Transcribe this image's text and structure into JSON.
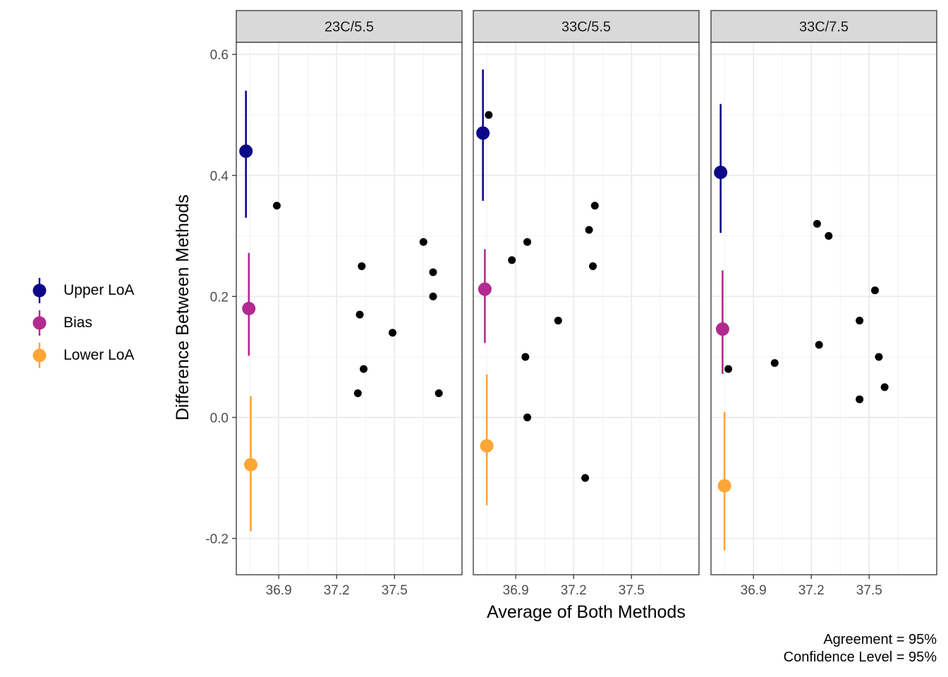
{
  "chart_data": {
    "type": "scatter",
    "xlabel": "Average of Both Methods",
    "ylabel": "Difference Between Methods",
    "xlim": [
      36.68,
      37.85
    ],
    "ylim": [
      -0.26,
      0.62
    ],
    "xticks": [
      36.9,
      37.2,
      37.5
    ],
    "xtick_labels": [
      "36.9",
      "37.2",
      "37.5"
    ],
    "yticks": [
      -0.2,
      0.0,
      0.2,
      0.4,
      0.6
    ],
    "ytick_labels": [
      "-0.2",
      "0.0",
      "0.2",
      "0.4",
      "0.6"
    ],
    "grid": true,
    "legend_position": "left",
    "legend": [
      {
        "label": "Upper LoA",
        "color": "#0d0887"
      },
      {
        "label": "Bias",
        "color": "#b12a90"
      },
      {
        "label": "Lower LoA",
        "color": "#fca636"
      }
    ],
    "point_color": "#000000",
    "panels": [
      {
        "title": "23C/5.5",
        "points": [
          {
            "x": 36.89,
            "y": 0.35
          },
          {
            "x": 37.33,
            "y": 0.25
          },
          {
            "x": 37.32,
            "y": 0.17
          },
          {
            "x": 37.34,
            "y": 0.08
          },
          {
            "x": 37.31,
            "y": 0.04
          },
          {
            "x": 37.49,
            "y": 0.14
          },
          {
            "x": 37.65,
            "y": 0.29
          },
          {
            "x": 37.7,
            "y": 0.24
          },
          {
            "x": 37.7,
            "y": 0.2
          },
          {
            "x": 37.73,
            "y": 0.04
          }
        ],
        "limits": [
          {
            "name": "Upper LoA",
            "x": 36.73,
            "estimate": 0.44,
            "lower": 0.33,
            "upper": 0.54
          },
          {
            "name": "Bias",
            "x": 36.745,
            "estimate": 0.18,
            "lower": 0.102,
            "upper": 0.272
          },
          {
            "name": "Lower LoA",
            "x": 36.755,
            "estimate": -0.078,
            "lower": -0.188,
            "upper": 0.035
          }
        ]
      },
      {
        "title": "33C/5.5",
        "points": [
          {
            "x": 36.76,
            "y": 0.5
          },
          {
            "x": 36.88,
            "y": 0.26
          },
          {
            "x": 36.96,
            "y": 0.29
          },
          {
            "x": 36.95,
            "y": 0.1
          },
          {
            "x": 36.96,
            "y": 0.0
          },
          {
            "x": 37.12,
            "y": 0.16
          },
          {
            "x": 37.28,
            "y": 0.31
          },
          {
            "x": 37.31,
            "y": 0.35
          },
          {
            "x": 37.3,
            "y": 0.25
          },
          {
            "x": 37.26,
            "y": -0.1
          }
        ],
        "limits": [
          {
            "name": "Upper LoA",
            "x": 36.73,
            "estimate": 0.47,
            "lower": 0.358,
            "upper": 0.575
          },
          {
            "name": "Bias",
            "x": 36.74,
            "estimate": 0.212,
            "lower": 0.123,
            "upper": 0.278
          },
          {
            "name": "Lower LoA",
            "x": 36.75,
            "estimate": -0.047,
            "lower": -0.145,
            "upper": 0.071
          }
        ]
      },
      {
        "title": "33C/7.5",
        "points": [
          {
            "x": 36.77,
            "y": 0.08
          },
          {
            "x": 37.01,
            "y": 0.09
          },
          {
            "x": 37.23,
            "y": 0.32
          },
          {
            "x": 37.29,
            "y": 0.3
          },
          {
            "x": 37.24,
            "y": 0.12
          },
          {
            "x": 37.45,
            "y": 0.16
          },
          {
            "x": 37.45,
            "y": 0.03
          },
          {
            "x": 37.53,
            "y": 0.21
          },
          {
            "x": 37.55,
            "y": 0.1
          },
          {
            "x": 37.58,
            "y": 0.05
          }
        ],
        "limits": [
          {
            "name": "Upper LoA",
            "x": 36.73,
            "estimate": 0.405,
            "lower": 0.305,
            "upper": 0.518
          },
          {
            "name": "Bias",
            "x": 36.74,
            "estimate": 0.146,
            "lower": 0.072,
            "upper": 0.243
          },
          {
            "name": "Lower LoA",
            "x": 36.75,
            "estimate": -0.113,
            "lower": -0.22,
            "upper": 0.009
          }
        ]
      }
    ]
  },
  "caption": {
    "line1": "Agreement = 95%",
    "line2": "Confidence Level = 95%"
  }
}
